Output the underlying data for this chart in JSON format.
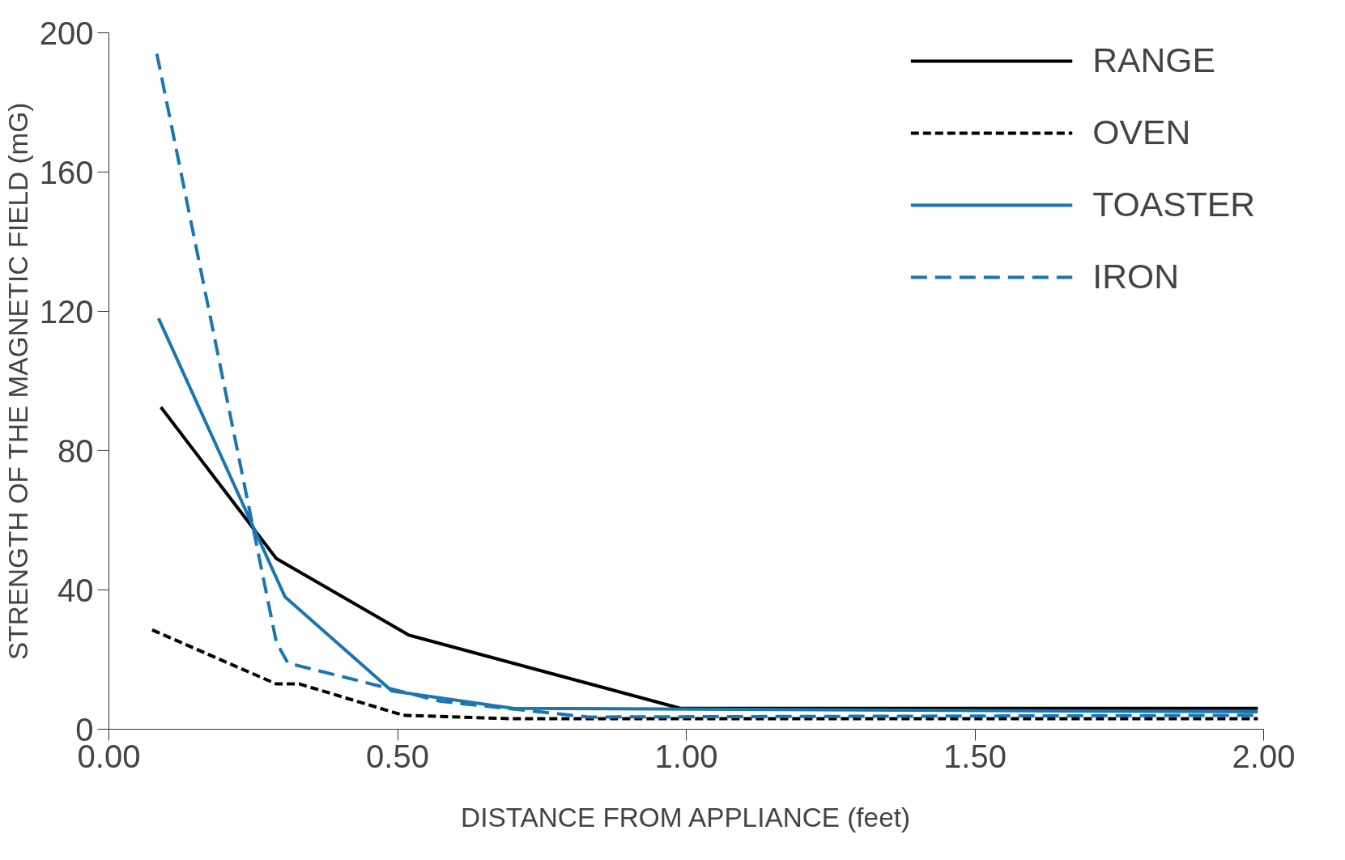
{
  "chart_data": {
    "type": "line",
    "xlabel": "DISTANCE FROM APPLIANCE (feet)",
    "ylabel": "STRENGTH OF THE MAGNETIC FIELD (mG)",
    "xlim": [
      0,
      2
    ],
    "xticks": [
      {
        "value": 0,
        "label": "0.00"
      },
      {
        "value": 0.5,
        "label": "0.50"
      },
      {
        "value": 1,
        "label": "1.00"
      },
      {
        "value": 1.5,
        "label": "1.50"
      },
      {
        "value": 2,
        "label": "2.00"
      }
    ],
    "ylim": [
      0,
      200
    ],
    "yticks": [
      0,
      40,
      80,
      120,
      160,
      200
    ],
    "grid": false,
    "legend": "top right",
    "marker": "none",
    "series": [
      {
        "name": "RANGE",
        "color": "#000000",
        "line_style": "solid",
        "x": [
          0.09,
          0.29,
          0.52,
          0.99,
          1.99
        ],
        "values": [
          92.5,
          49,
          27,
          6,
          6
        ]
      },
      {
        "name": "OVEN",
        "color": "#000000",
        "line_style": "dashed",
        "x": [
          0.075,
          0.29,
          0.33,
          0.51,
          0.7,
          1.99
        ],
        "values": [
          28.5,
          13,
          13,
          4,
          3,
          3
        ]
      },
      {
        "name": "TOASTER",
        "color": "#1a75b0",
        "line_style": "solid",
        "x": [
          0.086,
          0.305,
          0.49,
          0.7,
          1.99
        ],
        "values": [
          118,
          38,
          11,
          6,
          5
        ]
      },
      {
        "name": "IRON",
        "color": "#1a75b0",
        "line_style": "longdash",
        "x": [
          0.083,
          0.29,
          0.31,
          0.575,
          0.83,
          1.99
        ],
        "values": [
          194,
          25,
          19,
          8,
          3.5,
          4
        ]
      }
    ]
  }
}
